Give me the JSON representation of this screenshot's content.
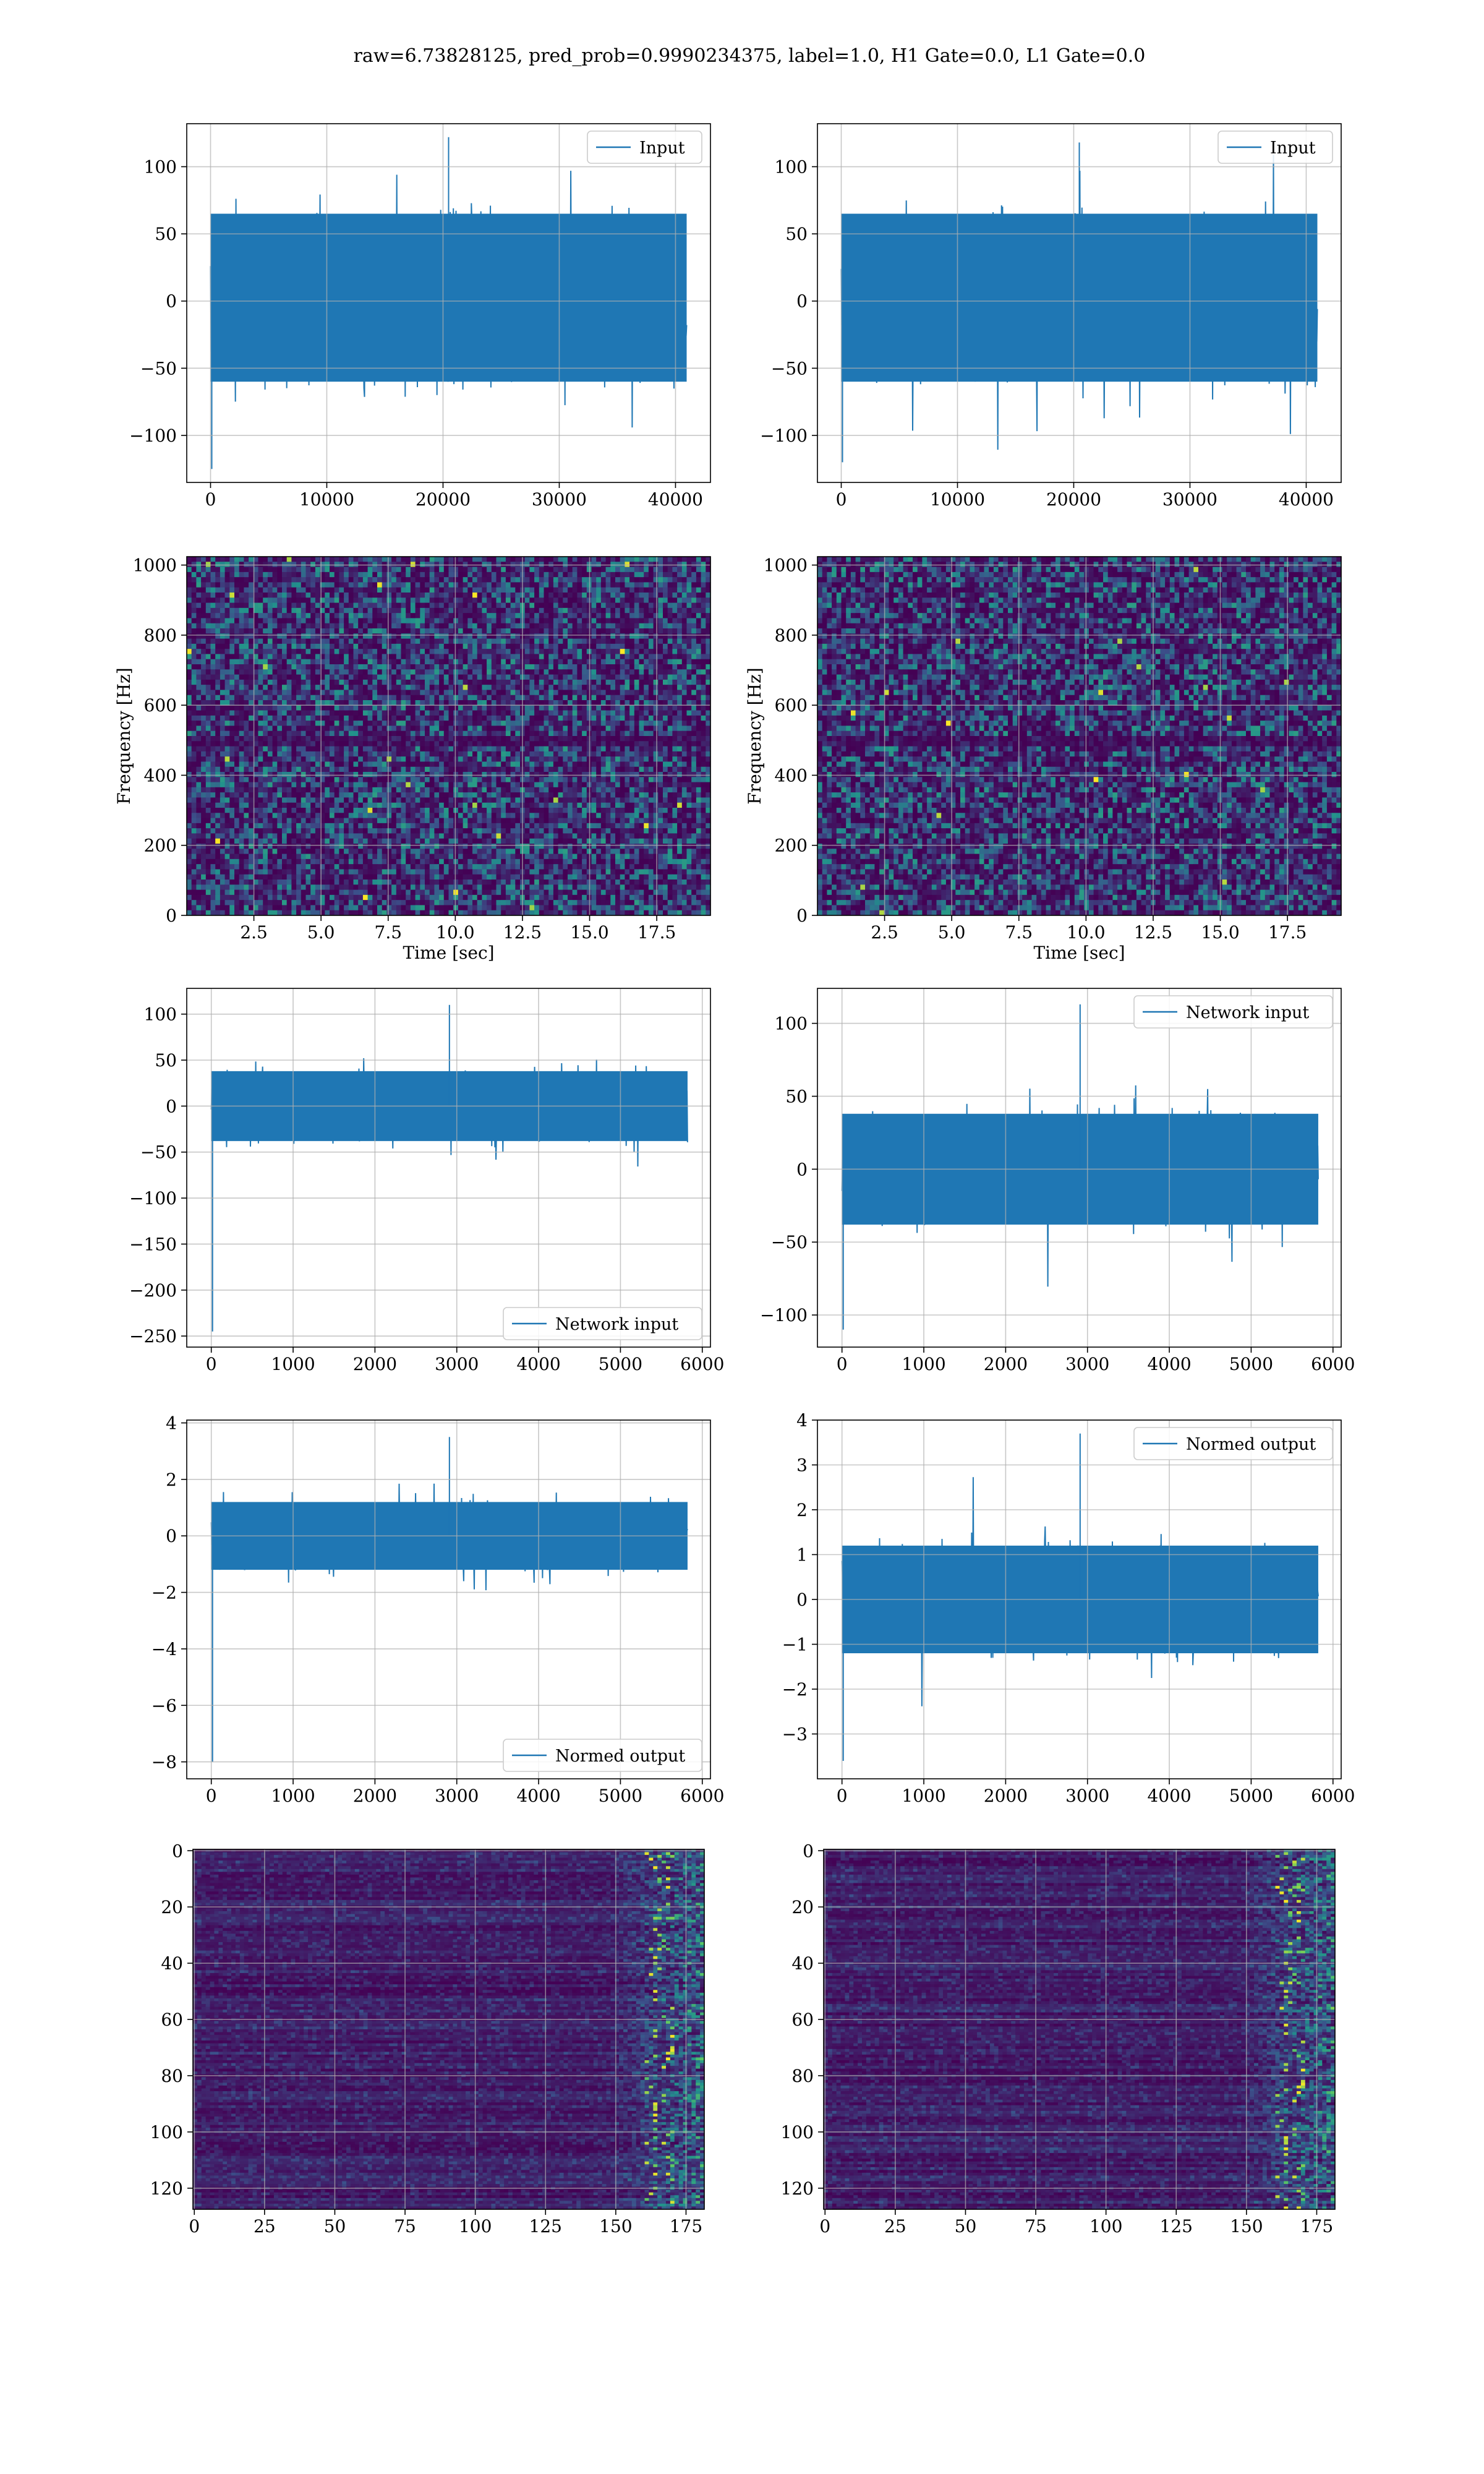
{
  "figure": {
    "suptitle": "raw=6.73828125, pred_prob=0.9990234375, label=1.0, H1 Gate=0.0, L1 Gate=0.0"
  },
  "colors": {
    "series": "#1f77b4",
    "grid": "#b0b0b0",
    "axes": "#000000",
    "viridis_low": "#440154",
    "viridis_mid": "#21918c",
    "viridis_high": "#fde725"
  },
  "chart_data": [
    {
      "id": "h1_input",
      "type": "line",
      "title": "",
      "xlabel": "",
      "ylabel": "",
      "xlim": [
        -2048,
        43008
      ],
      "ylim": [
        -135,
        132
      ],
      "xticks": [
        0,
        10000,
        20000,
        30000,
        40000
      ],
      "yticks": [
        -100,
        -50,
        0,
        50,
        100
      ],
      "xticklabels": [
        "0",
        "10000",
        "20000",
        "30000",
        "40000"
      ],
      "yticklabels": [
        "−100",
        "−50",
        "0",
        "50",
        "100"
      ],
      "legend": {
        "labels": [
          "Input"
        ],
        "loc": "upper right"
      },
      "series": [
        {
          "name": "Input",
          "x_range": [
            0,
            40960
          ],
          "core_band": [
            -60,
            65
          ],
          "extremes": [
            -125,
            122
          ]
        }
      ],
      "grid": true
    },
    {
      "id": "l1_input",
      "type": "line",
      "title": "",
      "xlabel": "",
      "ylabel": "",
      "xlim": [
        -2048,
        43008
      ],
      "ylim": [
        -135,
        132
      ],
      "xticks": [
        0,
        10000,
        20000,
        30000,
        40000
      ],
      "yticks": [
        -100,
        -50,
        0,
        50,
        100
      ],
      "xticklabels": [
        "0",
        "10000",
        "20000",
        "30000",
        "40000"
      ],
      "yticklabels": [
        "−100",
        "−50",
        "0",
        "50",
        "100"
      ],
      "legend": {
        "labels": [
          "Input"
        ],
        "loc": "upper right"
      },
      "series": [
        {
          "name": "Input",
          "x_range": [
            0,
            40960
          ],
          "core_band": [
            -60,
            65
          ],
          "extremes": [
            -120,
            118
          ]
        }
      ],
      "grid": true
    },
    {
      "id": "h1_spectrogram",
      "type": "heatmap",
      "title": "",
      "xlabel": "Time [sec]",
      "ylabel": "Frequency [Hz]",
      "xlim": [
        0,
        19.5
      ],
      "ylim": [
        0,
        1024
      ],
      "xticks": [
        2.5,
        5.0,
        7.5,
        10.0,
        12.5,
        15.0,
        17.5
      ],
      "yticks": [
        0,
        200,
        400,
        600,
        800,
        1000
      ],
      "xticklabels": [
        "2.5",
        "5.0",
        "7.5",
        "10.0",
        "12.5",
        "15.0",
        "17.5"
      ],
      "yticklabels": [
        "0",
        "200",
        "400",
        "600",
        "800",
        "1000"
      ],
      "colormap": "viridis",
      "grid": true
    },
    {
      "id": "l1_spectrogram",
      "type": "heatmap",
      "title": "",
      "xlabel": "Time [sec]",
      "ylabel": "Frequency [Hz]",
      "xlim": [
        0,
        19.5
      ],
      "ylim": [
        0,
        1024
      ],
      "xticks": [
        2.5,
        5.0,
        7.5,
        10.0,
        12.5,
        15.0,
        17.5
      ],
      "yticks": [
        0,
        200,
        400,
        600,
        800,
        1000
      ],
      "xticklabels": [
        "2.5",
        "5.0",
        "7.5",
        "10.0",
        "12.5",
        "15.0",
        "17.5"
      ],
      "yticklabels": [
        "0",
        "200",
        "400",
        "600",
        "800",
        "1000"
      ],
      "colormap": "viridis",
      "grid": true
    },
    {
      "id": "h1_network_input",
      "type": "line",
      "title": "",
      "xlabel": "",
      "ylabel": "",
      "xlim": [
        -300,
        6100
      ],
      "ylim": [
        -262,
        128
      ],
      "xticks": [
        0,
        1000,
        2000,
        3000,
        4000,
        5000,
        6000
      ],
      "yticks": [
        -250,
        -200,
        -150,
        -100,
        -50,
        0,
        50,
        100
      ],
      "xticklabels": [
        "0",
        "1000",
        "2000",
        "3000",
        "4000",
        "5000",
        "6000"
      ],
      "yticklabels": [
        "−250",
        "−200",
        "−150",
        "−100",
        "−50",
        "0",
        "50",
        "100"
      ],
      "legend": {
        "labels": [
          "Network input"
        ],
        "loc": "lower right"
      },
      "series": [
        {
          "name": "Network input",
          "x_range": [
            0,
            5820
          ],
          "core_band": [
            -38,
            38
          ],
          "extremes": [
            -245,
            110
          ]
        }
      ],
      "grid": true
    },
    {
      "id": "l1_network_input",
      "type": "line",
      "title": "",
      "xlabel": "",
      "ylabel": "",
      "xlim": [
        -300,
        6100
      ],
      "ylim": [
        -122,
        124
      ],
      "xticks": [
        0,
        1000,
        2000,
        3000,
        4000,
        5000,
        6000
      ],
      "yticks": [
        -100,
        -50,
        0,
        50,
        100
      ],
      "xticklabels": [
        "0",
        "1000",
        "2000",
        "3000",
        "4000",
        "5000",
        "6000"
      ],
      "yticklabels": [
        "−100",
        "−50",
        "0",
        "50",
        "100"
      ],
      "legend": {
        "labels": [
          "Network input"
        ],
        "loc": "upper right"
      },
      "series": [
        {
          "name": "Network input",
          "x_range": [
            0,
            5820
          ],
          "core_band": [
            -38,
            38
          ],
          "extremes": [
            -110,
            113
          ]
        }
      ],
      "grid": true
    },
    {
      "id": "h1_normed_output",
      "type": "line",
      "title": "",
      "xlabel": "",
      "ylabel": "",
      "xlim": [
        -300,
        6100
      ],
      "ylim": [
        -8.6,
        4.1
      ],
      "xticks": [
        0,
        1000,
        2000,
        3000,
        4000,
        5000,
        6000
      ],
      "yticks": [
        -8,
        -6,
        -4,
        -2,
        0,
        2,
        4
      ],
      "xticklabels": [
        "0",
        "1000",
        "2000",
        "3000",
        "4000",
        "5000",
        "6000"
      ],
      "yticklabels": [
        "−8",
        "−6",
        "−4",
        "−2",
        "0",
        "2",
        "4"
      ],
      "legend": {
        "labels": [
          "Normed output"
        ],
        "loc": "lower right"
      },
      "series": [
        {
          "name": "Normed output",
          "x_range": [
            0,
            5820
          ],
          "core_band": [
            -1.2,
            1.2
          ],
          "extremes": [
            -8.0,
            3.5
          ]
        }
      ],
      "grid": true
    },
    {
      "id": "l1_normed_output",
      "type": "line",
      "title": "",
      "xlabel": "",
      "ylabel": "",
      "xlim": [
        -300,
        6100
      ],
      "ylim": [
        -4.0,
        4.0
      ],
      "xticks": [
        0,
        1000,
        2000,
        3000,
        4000,
        5000,
        6000
      ],
      "yticks": [
        -3,
        -2,
        -1,
        0,
        1,
        2,
        3,
        4
      ],
      "xticklabels": [
        "0",
        "1000",
        "2000",
        "3000",
        "4000",
        "5000",
        "6000"
      ],
      "yticklabels": [
        "−3",
        "−2",
        "−1",
        "0",
        "1",
        "2",
        "3",
        "4"
      ],
      "legend": {
        "labels": [
          "Normed output"
        ],
        "loc": "upper right"
      },
      "series": [
        {
          "name": "Normed output",
          "x_range": [
            0,
            5820
          ],
          "core_band": [
            -1.2,
            1.2
          ],
          "extremes": [
            -3.6,
            3.7
          ]
        }
      ],
      "grid": true
    },
    {
      "id": "h1_feature_map",
      "type": "heatmap",
      "title": "",
      "xlabel": "",
      "ylabel": "",
      "xlim": [
        -0.5,
        181.5
      ],
      "ylim": [
        127.5,
        -0.5
      ],
      "xticks": [
        0,
        25,
        50,
        75,
        100,
        125,
        150,
        175
      ],
      "yticks": [
        0,
        20,
        40,
        60,
        80,
        100,
        120
      ],
      "xticklabels": [
        "0",
        "25",
        "50",
        "75",
        "100",
        "125",
        "150",
        "175"
      ],
      "yticklabels": [
        "0",
        "20",
        "40",
        "60",
        "80",
        "100",
        "120"
      ],
      "colormap": "viridis",
      "grid": true
    },
    {
      "id": "l1_feature_map",
      "type": "heatmap",
      "title": "",
      "xlabel": "",
      "ylabel": "",
      "xlim": [
        -0.5,
        181.5
      ],
      "ylim": [
        127.5,
        -0.5
      ],
      "xticks": [
        0,
        25,
        50,
        75,
        100,
        125,
        150,
        175
      ],
      "yticks": [
        0,
        20,
        40,
        60,
        80,
        100,
        120
      ],
      "xticklabels": [
        "0",
        "25",
        "50",
        "75",
        "100",
        "125",
        "150",
        "175"
      ],
      "yticklabels": [
        "0",
        "20",
        "40",
        "60",
        "80",
        "100",
        "120"
      ],
      "colormap": "viridis",
      "grid": true
    }
  ]
}
